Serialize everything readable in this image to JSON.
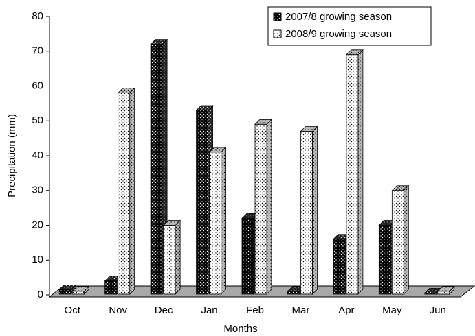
{
  "chart_data": {
    "type": "bar3d",
    "x_label": "Months",
    "y_label": "Precipitation (mm)",
    "categories": [
      "Oct",
      "Nov",
      "Dec",
      "Jan",
      "Feb",
      "Mar",
      "Apr",
      "May",
      "Jun"
    ],
    "series": [
      {
        "name": "2007/8 growing season",
        "color": "#000000",
        "values": [
          1.5,
          4,
          72,
          53,
          22,
          1,
          16,
          20,
          0.5
        ]
      },
      {
        "name": "2008/9 growing season",
        "color": "#ffffff",
        "values": [
          1,
          58,
          20,
          41,
          49,
          47,
          69,
          30,
          1
        ]
      }
    ],
    "ylim": [
      0,
      80
    ],
    "yticks": [
      0,
      10,
      20,
      30,
      40,
      50,
      60,
      70,
      80
    ],
    "legend": "upper right"
  }
}
